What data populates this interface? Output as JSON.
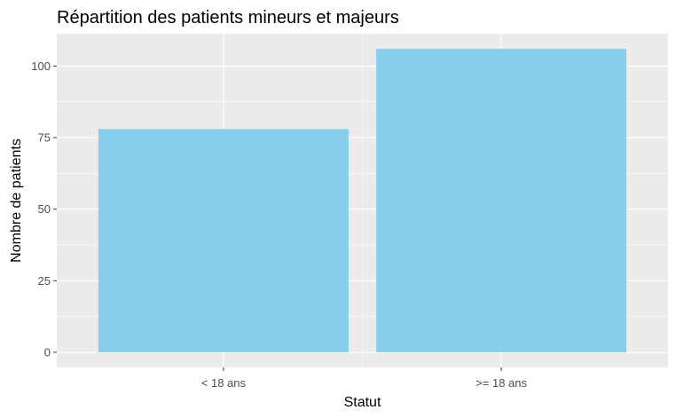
{
  "chart_data": {
    "type": "bar",
    "title": "Répartition des patients mineurs et majeurs",
    "xlabel": "Statut",
    "ylabel": "Nombre de patients",
    "categories": [
      "< 18 ans",
      ">= 18 ans"
    ],
    "values": [
      78,
      106
    ],
    "ylim": [
      -5.3,
      111.3
    ],
    "yticks": [
      0,
      25,
      50,
      75,
      100
    ],
    "grid": true,
    "legend": "none",
    "colors": {
      "bar": "#87CEEB",
      "panel": "#EBEBEB",
      "grid_major": "#FFFFFF",
      "tick_text": "#4D4D4D",
      "tick_mark": "#333333"
    }
  }
}
